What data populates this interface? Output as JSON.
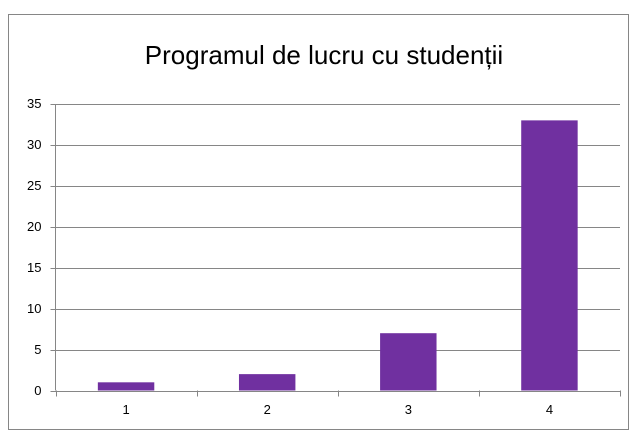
{
  "chart_data": {
    "type": "bar",
    "title": "Programul de lucru cu studenții",
    "categories": [
      "1",
      "2",
      "3",
      "4"
    ],
    "values": [
      1,
      2,
      7,
      33
    ],
    "color": "#7030a0",
    "ylim": [
      0,
      35
    ],
    "yticks": [
      0,
      5,
      10,
      15,
      20,
      25,
      30,
      35
    ],
    "grid": true
  }
}
